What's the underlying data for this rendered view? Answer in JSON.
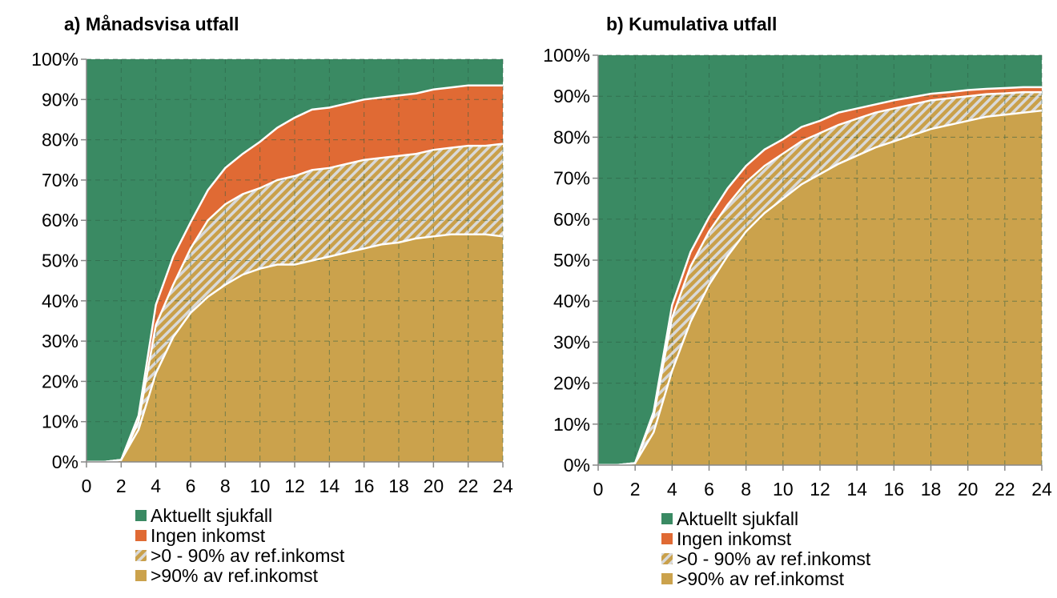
{
  "legend_entries": [
    {
      "label": "Aktuellt sjukfall",
      "color": "#3a8a63",
      "pattern": "solid"
    },
    {
      "label": "Ingen inkomst",
      "color": "#e06a34",
      "pattern": "solid"
    },
    {
      "label": ">0 - 90% av ref.inkomst",
      "color": "#c9a04a",
      "pattern": "hatched"
    },
    {
      "label": ">90% av ref.inkomst",
      "color": "#cba24c",
      "pattern": "solid"
    }
  ],
  "chart_data": [
    {
      "type": "area",
      "stacked": true,
      "title": "a) Månadsvisa utfall",
      "xlabel": "",
      "ylabel": "",
      "xlim": [
        0,
        24
      ],
      "ylim": [
        0,
        100
      ],
      "x_ticks": [
        "0",
        "2",
        "4",
        "6",
        "8",
        "10",
        "12",
        "14",
        "16",
        "18",
        "20",
        "22",
        "24"
      ],
      "y_ticks": [
        "0%",
        "10%",
        "20%",
        "30%",
        "40%",
        "50%",
        "60%",
        "70%",
        "80%",
        "90%",
        "100%"
      ],
      "grid": true,
      "legend_position": "bottom",
      "x": [
        0,
        1,
        2,
        3,
        4,
        5,
        6,
        7,
        8,
        9,
        10,
        11,
        12,
        13,
        14,
        15,
        16,
        17,
        18,
        19,
        20,
        21,
        22,
        23,
        24
      ],
      "series": [
        {
          "name": ">90% av ref.inkomst",
          "values": [
            0,
            0,
            0.5,
            8,
            22,
            31,
            37,
            41,
            44,
            46.5,
            48,
            49,
            49,
            50,
            51,
            52,
            53,
            54,
            54.5,
            55.5,
            56,
            56.5,
            56.5,
            56.5,
            56
          ]
        },
        {
          "name": ">0 - 90% av ref.inkomst",
          "values": [
            0,
            0,
            0,
            2,
            12,
            13,
            16,
            19,
            20,
            20,
            20,
            21,
            22,
            22.5,
            22,
            22,
            22,
            21.5,
            21.5,
            21,
            21.5,
            21.5,
            22,
            22,
            23
          ]
        },
        {
          "name": "Ingen inkomst",
          "values": [
            0,
            0,
            0,
            1.5,
            5,
            7,
            6.5,
            7.5,
            9,
            10,
            11.5,
            13,
            14.5,
            15,
            15,
            15,
            15,
            15,
            15,
            15,
            15,
            15,
            15,
            15,
            14.5
          ]
        },
        {
          "name": "Aktuellt sjukfall",
          "values": [
            100,
            100,
            99.5,
            88.5,
            61,
            49,
            40.5,
            32.5,
            27,
            23.5,
            20.5,
            17,
            14.5,
            12.5,
            12,
            11,
            10,
            9.5,
            9,
            8.5,
            7.5,
            7,
            6.5,
            6.5,
            6.5
          ]
        }
      ]
    },
    {
      "type": "area",
      "stacked": true,
      "title": "b) Kumulativa utfall",
      "xlabel": "",
      "ylabel": "",
      "xlim": [
        0,
        24
      ],
      "ylim": [
        0,
        100
      ],
      "x_ticks": [
        "0",
        "2",
        "4",
        "6",
        "8",
        "10",
        "12",
        "14",
        "16",
        "18",
        "20",
        "22",
        "24"
      ],
      "y_ticks": [
        "0%",
        "10%",
        "20%",
        "30%",
        "40%",
        "50%",
        "60%",
        "70%",
        "80%",
        "90%",
        "100%"
      ],
      "grid": true,
      "legend_position": "bottom",
      "x": [
        0,
        1,
        2,
        3,
        4,
        5,
        6,
        7,
        8,
        9,
        10,
        11,
        12,
        13,
        14,
        15,
        16,
        17,
        18,
        19,
        20,
        21,
        22,
        23,
        24
      ],
      "series": [
        {
          "name": ">90% av ref.inkomst",
          "values": [
            0,
            0,
            0.5,
            8,
            23,
            35,
            44,
            51,
            57,
            61.5,
            65,
            68.5,
            71,
            73.5,
            75.5,
            77.5,
            79,
            80.5,
            82,
            83,
            84,
            85,
            85.5,
            86,
            86.5
          ]
        },
        {
          "name": ">0 - 90% av ref.inkomst",
          "values": [
            0,
            0,
            0,
            4,
            13,
            13.5,
            13,
            12.5,
            12,
            11.5,
            11,
            10.5,
            10,
            9.5,
            9,
            8.5,
            8,
            7.5,
            7,
            6.5,
            6,
            5.5,
            5.2,
            5,
            4.5
          ]
        },
        {
          "name": "Ingen inkomst",
          "values": [
            0,
            0,
            0,
            1,
            3,
            3.5,
            3.5,
            4,
            4,
            4,
            3.5,
            3.5,
            3,
            3,
            2.5,
            2,
            2,
            1.8,
            1.6,
            1.5,
            1.5,
            1.3,
            1.3,
            1.2,
            1.2
          ]
        },
        {
          "name": "Aktuellt sjukfall",
          "values": [
            100,
            100,
            99.5,
            87,
            61,
            48,
            39.5,
            32.5,
            27,
            23,
            20.5,
            17.5,
            16,
            14,
            13,
            12,
            11,
            10.2,
            9.4,
            9,
            8.5,
            8.2,
            8,
            7.8,
            7.8
          ]
        }
      ]
    }
  ]
}
